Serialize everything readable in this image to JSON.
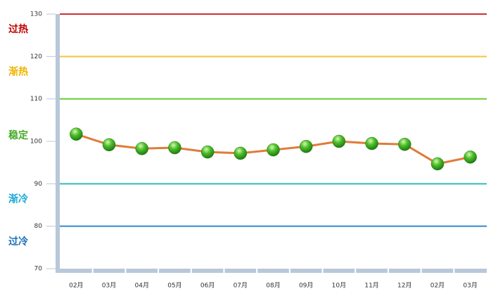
{
  "chart_data": {
    "type": "line",
    "categories": [
      "02月",
      "03月",
      "04月",
      "05月",
      "06月",
      "07月",
      "08月",
      "09月",
      "10月",
      "11月",
      "12月",
      "02月",
      "03月"
    ],
    "series": [
      {
        "color": "#e07b39",
        "values": [
          101.7,
          99.2,
          98.3,
          98.5,
          97.5,
          97.2,
          98.0,
          98.8,
          100.0,
          99.5,
          99.3,
          94.7,
          96.3
        ]
      }
    ],
    "ylim": [
      70,
      130
    ],
    "yticks": [
      70,
      80,
      90,
      100,
      110,
      120,
      130
    ],
    "reference_lines": [
      {
        "value": 130,
        "color": "#d03030"
      },
      {
        "value": 120,
        "color": "#f5c242"
      },
      {
        "value": 110,
        "color": "#66cc33"
      },
      {
        "value": 90,
        "color": "#33bbbb"
      },
      {
        "value": 80,
        "color": "#3388cc"
      }
    ],
    "zones": [
      {
        "label": "过热",
        "range": [
          120,
          130
        ],
        "color": "#c00000"
      },
      {
        "label": "渐热",
        "range": [
          110,
          120
        ],
        "color": "#f0b400"
      },
      {
        "label": "稳定",
        "range": [
          90,
          110
        ],
        "color": "#44aa22"
      },
      {
        "label": "渐冷",
        "range": [
          80,
          90
        ],
        "color": "#1aa8d8"
      },
      {
        "label": "过冷",
        "range": [
          70,
          80
        ],
        "color": "#1a6fb8"
      }
    ]
  }
}
